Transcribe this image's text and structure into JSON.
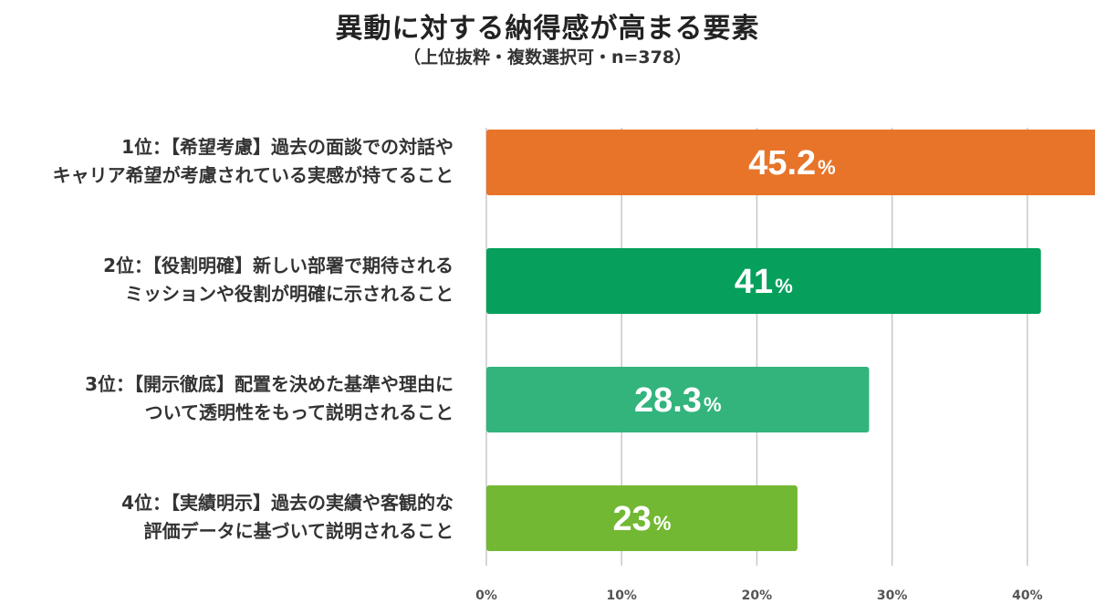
{
  "title": "異動に対する納得感が高まる要素",
  "subtitle": "（上位抜粋・複数選択可・n=378）",
  "chart_data": {
    "type": "bar",
    "orientation": "horizontal",
    "title": "異動に対する納得感が高まる要素",
    "subtitle": "（上位抜粋・複数選択可・n=378）",
    "categories": [
      [
        "1位：【希望考慮】過去の面談での対話や",
        "キャリア希望が考慮されている実感が持てること"
      ],
      [
        "2位：【役割明確】新しい部署で期待される",
        "ミッションや役割が明確に示されること"
      ],
      [
        "3位：【開示徹底】配置を決めた基準や理由に",
        "ついて透明性をもって説明されること"
      ],
      [
        "4位：【実績明示】過去の実績や客観的な",
        "評価データに基づいて説明されること"
      ]
    ],
    "values": [
      45.2,
      41,
      28.3,
      23
    ],
    "value_labels": [
      "45.2",
      "41",
      "28.3",
      "23"
    ],
    "value_suffix": "%",
    "colors": [
      "#E8742A",
      "#06A05C",
      "#32B47C",
      "#72B833"
    ],
    "xlim": [
      0,
      45
    ],
    "xticks": [
      0,
      10,
      20,
      30,
      40
    ],
    "xtick_labels": [
      "0%",
      "10%",
      "20%",
      "30%",
      "40%"
    ],
    "grid": true,
    "grid_color": "#c8c8c8",
    "xlabel": "",
    "ylabel": ""
  }
}
